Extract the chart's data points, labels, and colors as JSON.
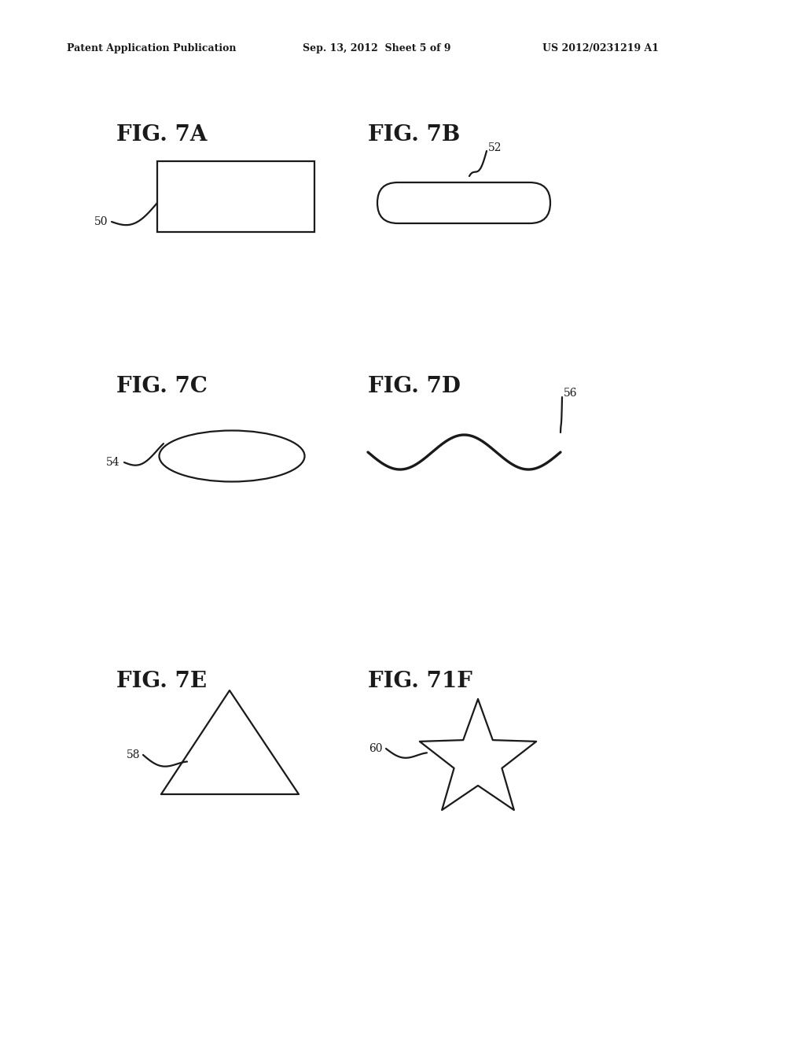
{
  "bg_color": "#ffffff",
  "header_left": "Patent Application Publication",
  "header_center": "Sep. 13, 2012  Sheet 5 of 9",
  "header_right": "US 2012/0231219 A1",
  "line_color": "#1a1a1a",
  "line_width": 1.6
}
